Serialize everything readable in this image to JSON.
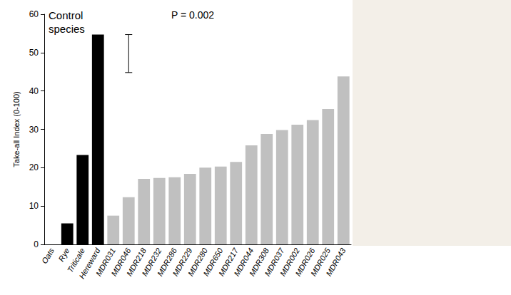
{
  "chart_data": {
    "type": "bar",
    "y_label": "Take-all Index (0-100)",
    "annotations": [
      "Control species",
      "P = 0.002"
    ],
    "categories": [
      "Oats",
      "Rye",
      "Triticale",
      "Hereward",
      "MDR031",
      "MDR046",
      "MDR218",
      "MDR232",
      "MDR286",
      "MDR229",
      "MDR280",
      "MDR650",
      "MDR217",
      "MDR044",
      "MDR308",
      "MDR037",
      "MDR002",
      "MDR026",
      "MDR025",
      "MDR043"
    ],
    "values": [
      0,
      5.5,
      23.3,
      54.7,
      7.5,
      12.3,
      17.1,
      17.3,
      17.5,
      18.4,
      20.0,
      20.3,
      21.5,
      25.8,
      28.8,
      29.8,
      31.2,
      32.4,
      35.3,
      43.8
    ],
    "colors": [
      "#000000",
      "#000000",
      "#000000",
      "#000000",
      "#c0c0c0",
      "#c0c0c0",
      "#c0c0c0",
      "#c0c0c0",
      "#c0c0c0",
      "#c0c0c0",
      "#c0c0c0",
      "#c0c0c0",
      "#c0c0c0",
      "#c0c0c0",
      "#c0c0c0",
      "#c0c0c0",
      "#c0c0c0",
      "#c0c0c0",
      "#c0c0c0",
      "#c0c0c0"
    ],
    "error_bar": {
      "category": "MDR046",
      "low": 44.8,
      "high": 54.7
    },
    "ylim": [
      0,
      60
    ],
    "yticks": [
      0,
      10,
      20,
      30,
      40,
      50,
      60
    ],
    "grid": false
  }
}
